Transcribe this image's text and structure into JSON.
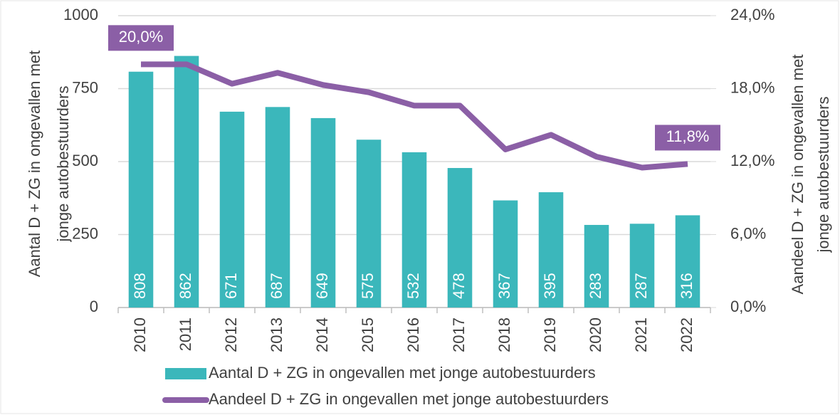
{
  "chart_data": {
    "type": "bar",
    "ylabel": [
      "Aantal D + ZG in ongevallen met",
      "jonge autobestuurders"
    ],
    "y2label": [
      "Aandeel D + ZG in ongevallen met",
      "jonge autobestuurders"
    ],
    "categories": [
      "2010",
      "2011",
      "2012",
      "2013",
      "2014",
      "2015",
      "2016",
      "2017",
      "2018",
      "2019",
      "2020",
      "2021",
      "2022"
    ],
    "series": [
      {
        "name": "Aantal D + ZG in ongevallen met jonge autobestuurders",
        "type": "bar",
        "color": "#3bb7bb",
        "values": [
          808,
          862,
          671,
          687,
          649,
          575,
          532,
          478,
          367,
          395,
          283,
          287,
          316
        ]
      },
      {
        "name": "Aandeel D + ZG in ongevallen met jonge autobestuurders",
        "type": "line",
        "axis": "y2",
        "color": "#8b5fa6",
        "values": [
          20.0,
          20.0,
          18.4,
          19.3,
          18.3,
          17.7,
          16.6,
          16.6,
          13.0,
          14.2,
          12.4,
          11.5,
          11.8
        ],
        "value_labels": [
          "20,0%",
          null,
          null,
          null,
          null,
          null,
          null,
          null,
          null,
          null,
          null,
          null,
          "11,8%"
        ]
      }
    ],
    "ylim": [
      0,
      1000
    ],
    "yticks": [
      0,
      250,
      500,
      750,
      1000
    ],
    "y2lim": [
      0,
      24
    ],
    "y2ticks": [
      {
        "value": 0,
        "label": "0,0%"
      },
      {
        "value": 6,
        "label": "6,0%"
      },
      {
        "value": 12,
        "label": "12,0%"
      },
      {
        "value": 18,
        "label": "18,0%"
      },
      {
        "value": 24,
        "label": "24,0%"
      }
    ],
    "grid": true,
    "legend": "bottom"
  }
}
